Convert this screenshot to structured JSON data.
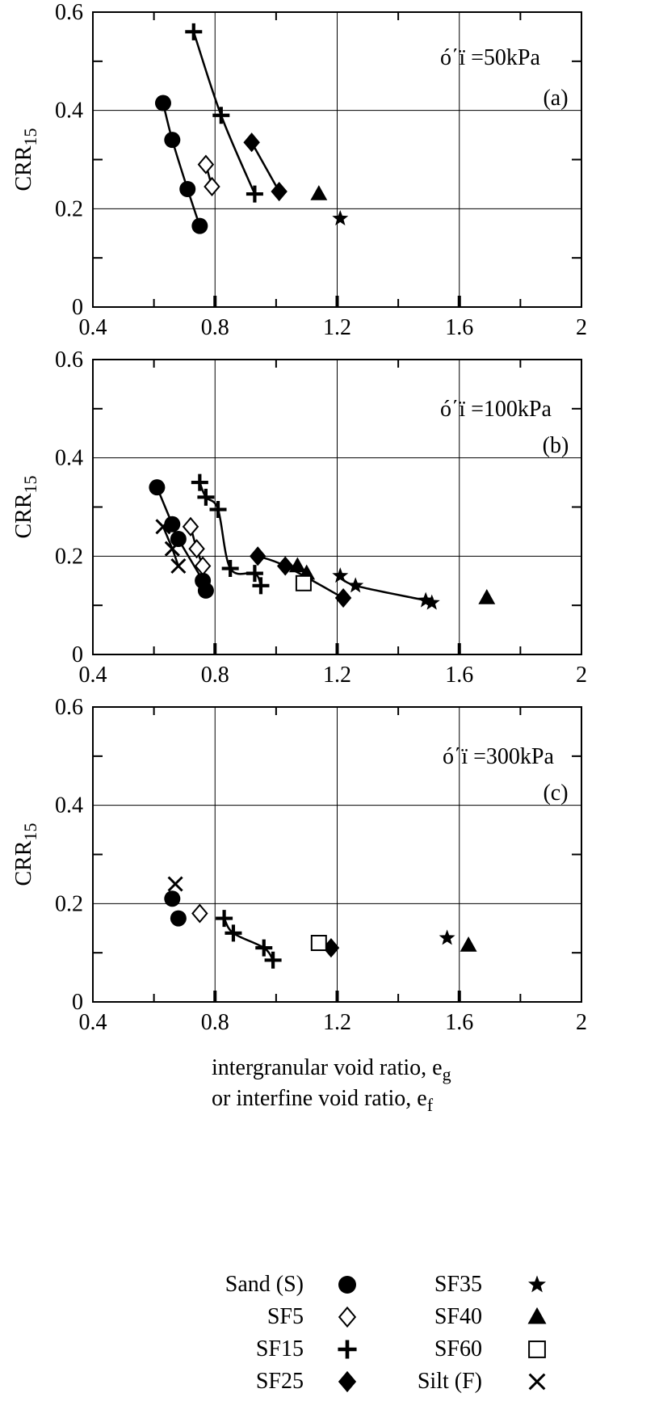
{
  "chart_data": [
    {
      "type": "scatter",
      "panel": "(a)",
      "annotation": "ó΄ï =50kPa",
      "ylabel": "CRR",
      "ylabel_sub": "15",
      "xlim": [
        0.4,
        2
      ],
      "ylim": [
        0,
        0.6
      ],
      "xticks": [
        "0.4",
        "0.8",
        "1.2",
        "1.6",
        "2"
      ],
      "yticks": [
        "0",
        "0.2",
        "0.4",
        "0.6"
      ],
      "grid": true,
      "series": [
        {
          "name": "Sand (S)",
          "marker": "circle",
          "x": [
            0.63,
            0.66,
            0.71,
            0.75
          ],
          "y": [
            0.415,
            0.34,
            0.24,
            0.165
          ],
          "fit": true
        },
        {
          "name": "SF5",
          "marker": "diamond-open",
          "x": [
            0.77,
            0.79
          ],
          "y": [
            0.29,
            0.245
          ],
          "fit": true
        },
        {
          "name": "SF15",
          "marker": "plus",
          "x": [
            0.73,
            0.82,
            0.93
          ],
          "y": [
            0.56,
            0.39,
            0.23
          ],
          "fit": true
        },
        {
          "name": "SF25",
          "marker": "diamond",
          "x": [
            0.92,
            1.01
          ],
          "y": [
            0.335,
            0.235
          ],
          "fit": true
        },
        {
          "name": "SF35",
          "marker": "star",
          "x": [
            1.21
          ],
          "y": [
            0.18
          ],
          "fit": false
        },
        {
          "name": "SF40",
          "marker": "triangle",
          "x": [
            1.14
          ],
          "y": [
            0.23
          ],
          "fit": false
        }
      ]
    },
    {
      "type": "scatter",
      "panel": "(b)",
      "annotation": "ó΄ï =100kPa",
      "ylabel": "CRR",
      "ylabel_sub": "15",
      "xlim": [
        0.4,
        2
      ],
      "ylim": [
        0,
        0.6
      ],
      "xticks": [
        "0.4",
        "0.8",
        "1.2",
        "1.6",
        "2"
      ],
      "yticks": [
        "0",
        "0.2",
        "0.4",
        "0.6"
      ],
      "grid": true,
      "series": [
        {
          "name": "Sand (S)",
          "marker": "circle",
          "x": [
            0.61,
            0.66,
            0.68,
            0.76,
            0.77
          ],
          "y": [
            0.34,
            0.265,
            0.235,
            0.15,
            0.13
          ],
          "fit": true
        },
        {
          "name": "SF5",
          "marker": "diamond-open",
          "x": [
            0.72,
            0.74,
            0.76
          ],
          "y": [
            0.26,
            0.215,
            0.18
          ],
          "fit": true
        },
        {
          "name": "SF15",
          "marker": "plus",
          "x": [
            0.75,
            0.77,
            0.81,
            0.85,
            0.93,
            0.95
          ],
          "y": [
            0.35,
            0.32,
            0.295,
            0.175,
            0.165,
            0.14
          ],
          "fit": true
        },
        {
          "name": "SF25",
          "marker": "diamond",
          "x": [
            0.94,
            1.03,
            1.22
          ],
          "y": [
            0.2,
            0.18,
            0.115
          ],
          "fit": true
        },
        {
          "name": "SF35",
          "marker": "star",
          "x": [
            1.21,
            1.26,
            1.49,
            1.51
          ],
          "y": [
            0.16,
            0.14,
            0.11,
            0.105
          ],
          "fit": true
        },
        {
          "name": "SF40",
          "marker": "triangle",
          "x": [
            1.07,
            1.1,
            1.69
          ],
          "y": [
            0.18,
            0.165,
            0.115
          ],
          "fit": false
        },
        {
          "name": "SF60",
          "marker": "square-open",
          "x": [
            1.09
          ],
          "y": [
            0.145
          ],
          "fit": false
        },
        {
          "name": "Silt (F)",
          "marker": "cross",
          "x": [
            0.63,
            0.66,
            0.68
          ],
          "y": [
            0.26,
            0.215,
            0.18
          ],
          "fit": true
        }
      ]
    },
    {
      "type": "scatter",
      "panel": "(c)",
      "annotation": "ó΄ï =300kPa",
      "ylabel": "CRR",
      "ylabel_sub": "15",
      "xlim": [
        0.4,
        2
      ],
      "ylim": [
        0,
        0.6
      ],
      "xticks": [
        "0.4",
        "0.8",
        "1.2",
        "1.6",
        "2"
      ],
      "yticks": [
        "0",
        "0.2",
        "0.4",
        "0.6"
      ],
      "grid": true,
      "xlabel_line1": "intergranular void ratio, e",
      "xlabel_line1_sub": "g",
      "xlabel_line2": "or interfine void ratio, e",
      "xlabel_line2_sub": "f",
      "series": [
        {
          "name": "Sand (S)",
          "marker": "circle",
          "x": [
            0.66,
            0.68
          ],
          "y": [
            0.21,
            0.17
          ],
          "fit": false
        },
        {
          "name": "SF5",
          "marker": "diamond-open",
          "x": [
            0.75
          ],
          "y": [
            0.18
          ],
          "fit": false
        },
        {
          "name": "SF15",
          "marker": "plus",
          "x": [
            0.83,
            0.86,
            0.96,
            0.99
          ],
          "y": [
            0.17,
            0.14,
            0.11,
            0.085
          ],
          "fit": true
        },
        {
          "name": "SF25",
          "marker": "diamond",
          "x": [
            1.18
          ],
          "y": [
            0.11
          ],
          "fit": false
        },
        {
          "name": "SF35",
          "marker": "star",
          "x": [
            1.56
          ],
          "y": [
            0.13
          ],
          "fit": false
        },
        {
          "name": "SF40",
          "marker": "triangle",
          "x": [
            1.63
          ],
          "y": [
            0.115
          ],
          "fit": false
        },
        {
          "name": "SF60",
          "marker": "square-open",
          "x": [
            1.14
          ],
          "y": [
            0.12
          ],
          "fit": false
        },
        {
          "name": "Silt (F)",
          "marker": "cross",
          "x": [
            0.67
          ],
          "y": [
            0.24
          ],
          "fit": false
        }
      ]
    }
  ],
  "legend": {
    "placement": "bottom",
    "items": [
      {
        "label": "Sand (S)",
        "marker": "circle"
      },
      {
        "label": "SF5",
        "marker": "diamond-open"
      },
      {
        "label": "SF15",
        "marker": "plus"
      },
      {
        "label": "SF25",
        "marker": "diamond"
      },
      {
        "label": "SF35",
        "marker": "star"
      },
      {
        "label": "SF40",
        "marker": "triangle"
      },
      {
        "label": "SF60",
        "marker": "square-open"
      },
      {
        "label": "Silt (F)",
        "marker": "cross"
      }
    ]
  }
}
